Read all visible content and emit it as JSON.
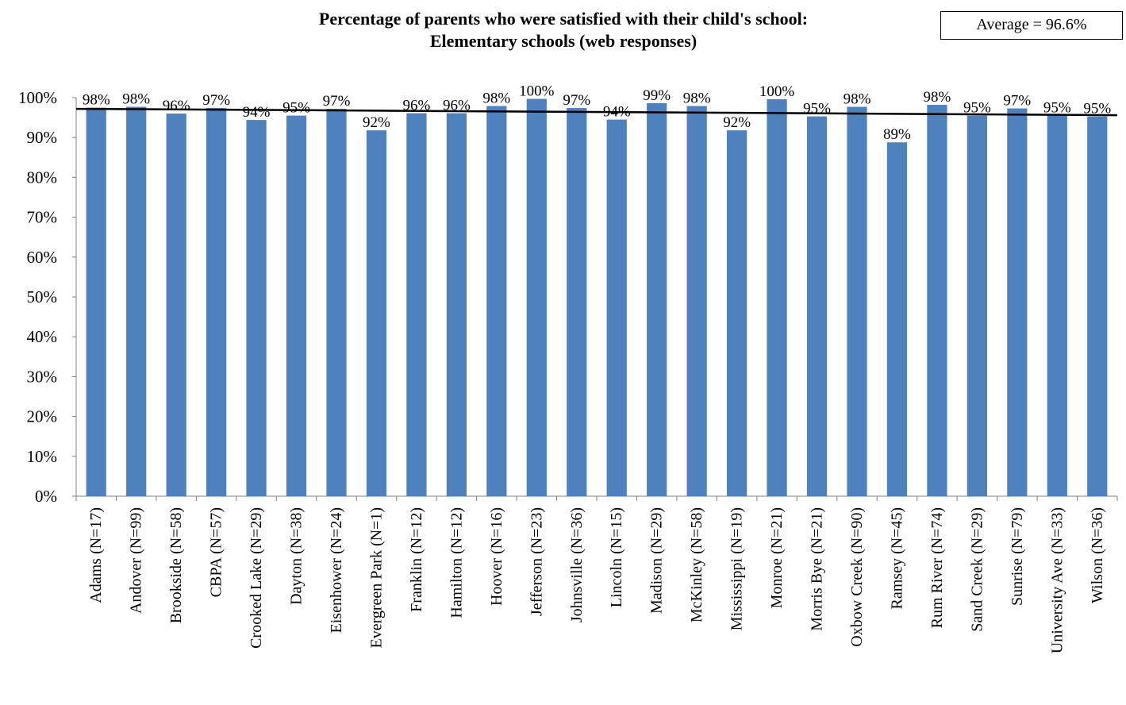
{
  "chart_data": {
    "type": "bar",
    "title_line1": "Percentage of parents who were satisfied with their child's school:",
    "title_line2": "Elementary schools (web responses)",
    "average_label": "Average = 96.6%",
    "average_value": 96.6,
    "ylim": [
      0,
      100
    ],
    "yticks": [
      "0%",
      "10%",
      "20%",
      "30%",
      "40%",
      "50%",
      "60%",
      "70%",
      "80%",
      "90%",
      "100%"
    ],
    "bar_color": "#4f81bd",
    "categories": [
      "Adams (N=17)",
      "Andover (N=99)",
      "Brookside (N=58)",
      "CBPA (N=57)",
      "Crooked Lake (N=29)",
      "Dayton (N=38)",
      "Eisenhower (N=24)",
      "Evergreen Park (N=1)",
      "Franklin (N=12)",
      "Hamilton (N=12)",
      "Hoover (N=16)",
      "Jefferson (N=23)",
      "Johnsville (N=36)",
      "Lincoln (N=15)",
      "Madison (N=29)",
      "McKinley (N=58)",
      "Mississippi (N=19)",
      "Monroe (N=21)",
      "Morris Bye (N=21)",
      "Oxbow Creek (N=90)",
      "Ramsey (N=45)",
      "Rum River (N=74)",
      "Sand Creek (N=29)",
      "Sunrise (N=79)",
      "University Ave (N=33)",
      "Wilson (N=36)"
    ],
    "values": [
      97.5,
      97.7,
      96.0,
      97.4,
      94.4,
      95.5,
      97.2,
      91.8,
      96.1,
      96.1,
      97.9,
      99.7,
      97.4,
      94.5,
      98.6,
      97.9,
      91.8,
      99.6,
      95.3,
      97.7,
      88.8,
      98.2,
      95.5,
      97.3,
      95.5,
      95.3
    ],
    "data_labels": [
      "98%",
      "98%",
      "96%",
      "97%",
      "94%",
      "95%",
      "97%",
      "92%",
      "96%",
      "96%",
      "98%",
      "100%",
      "97%",
      "94%",
      "99%",
      "98%",
      "92%",
      "100%",
      "95%",
      "98%",
      "89%",
      "98%",
      "95%",
      "97%",
      "95%",
      "95%"
    ]
  }
}
